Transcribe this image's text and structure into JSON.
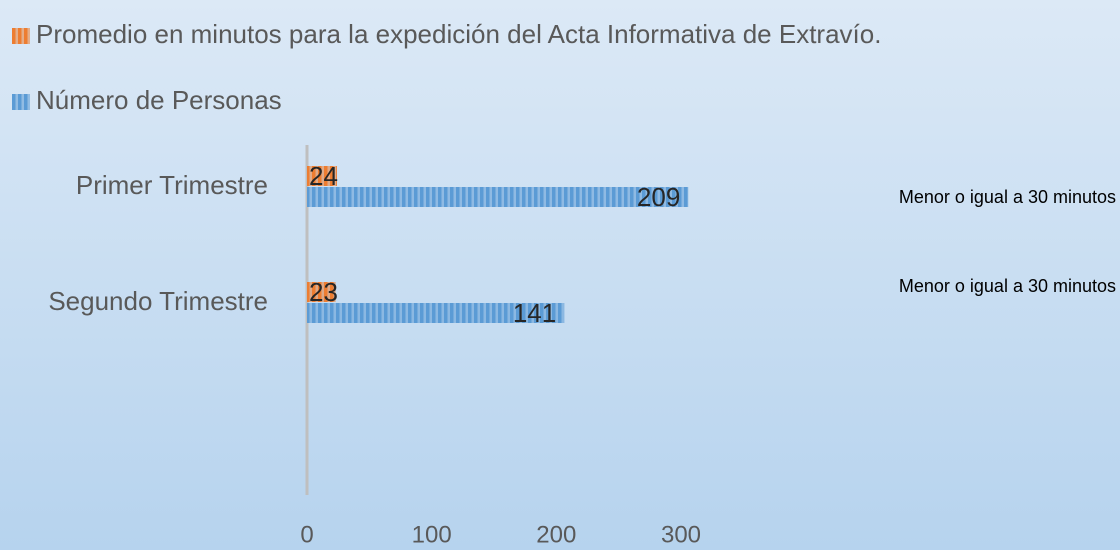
{
  "chart_data": {
    "type": "barh",
    "categories": [
      "Primer Trimestre",
      "Segundo Trimestre"
    ],
    "series": [
      {
        "name": "Promedio en minutos para la expedición del Acta Informativa de Extravío.",
        "color": "#ed7d31",
        "values": [
          24,
          23
        ]
      },
      {
        "name": "Número de Personas",
        "color": "#5b9bd5",
        "values": [
          209,
          141
        ],
        "axis": "x2"
      }
    ],
    "xlim": [
      0,
      300
    ],
    "xticks": [
      0,
      100,
      200,
      300
    ],
    "x2lim": [
      0,
      205
    ],
    "annotations": [
      "Menor o igual a 30 minutos",
      "Menor o igual a 30 minutos"
    ],
    "legend": "top"
  }
}
